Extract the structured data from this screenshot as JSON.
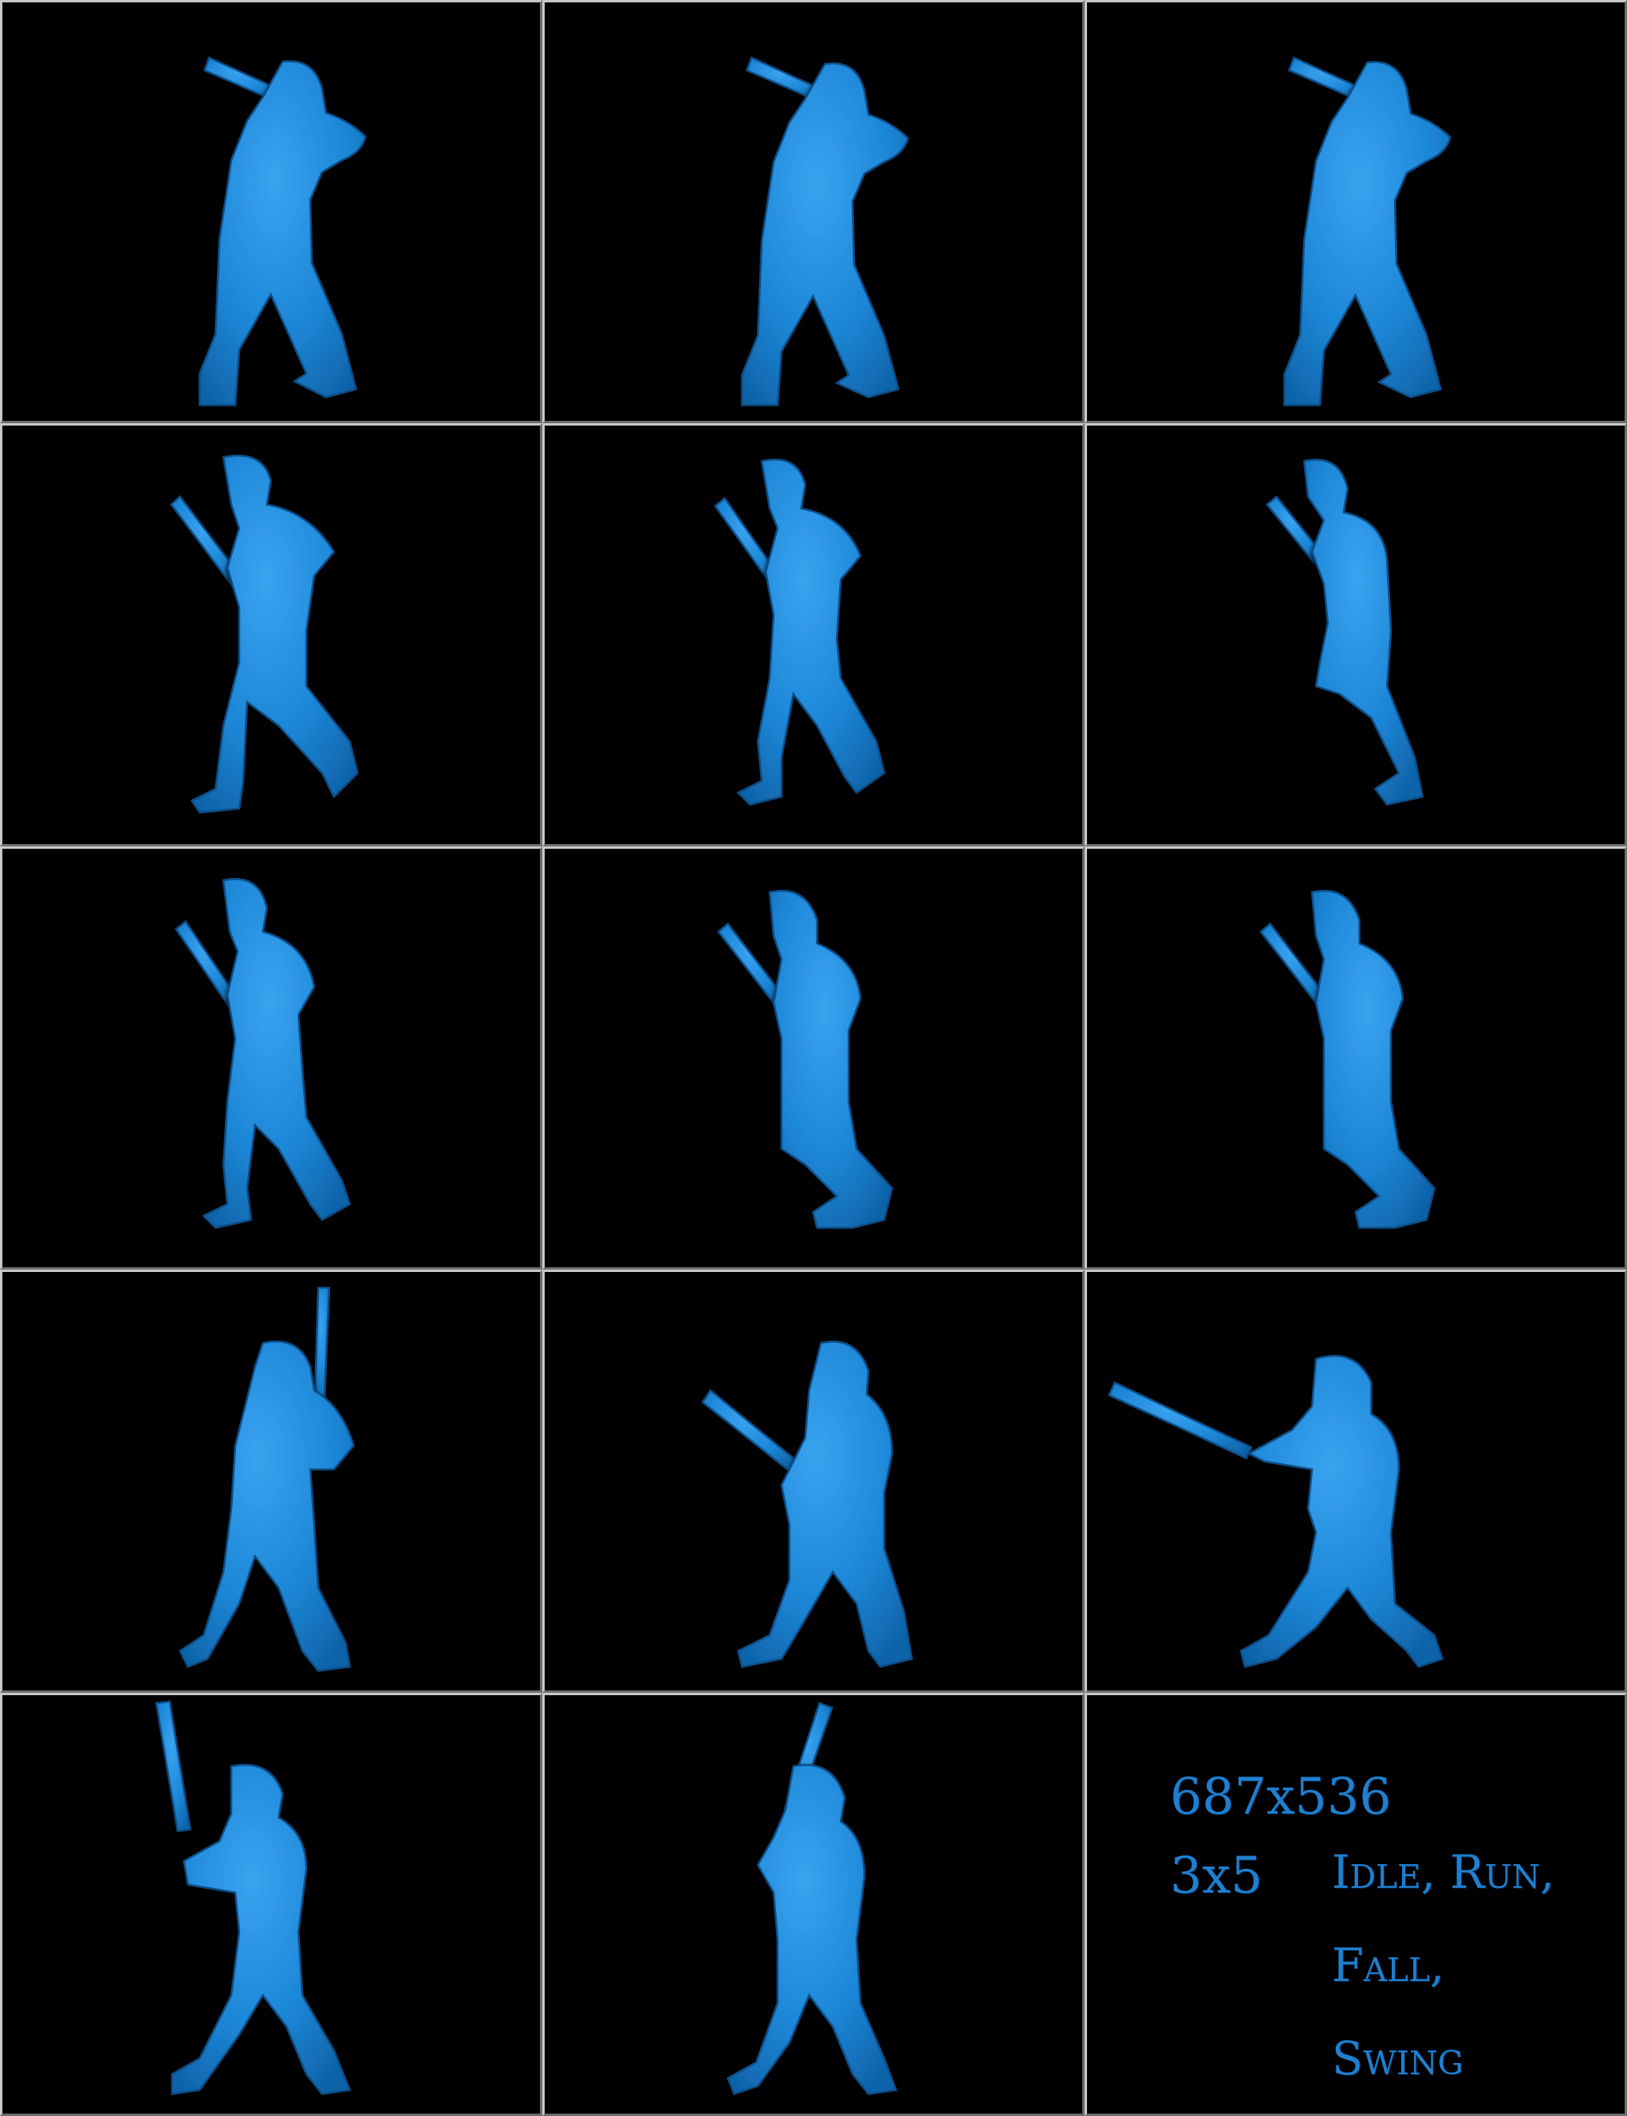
{
  "sheet": {
    "columns": 3,
    "rows": 5,
    "frame_color": "#1e88d8",
    "background_color": "#000000",
    "frames": [
      {
        "index": 1,
        "pose": "idle"
      },
      {
        "index": 2,
        "pose": "idle"
      },
      {
        "index": 3,
        "pose": "idle"
      },
      {
        "index": 4,
        "pose": "run"
      },
      {
        "index": 5,
        "pose": "run"
      },
      {
        "index": 6,
        "pose": "run"
      },
      {
        "index": 7,
        "pose": "run"
      },
      {
        "index": 8,
        "pose": "fall"
      },
      {
        "index": 9,
        "pose": "fall"
      },
      {
        "index": 10,
        "pose": "swing"
      },
      {
        "index": 11,
        "pose": "swing"
      },
      {
        "index": 12,
        "pose": "swing"
      },
      {
        "index": 13,
        "pose": "swing"
      },
      {
        "index": 14,
        "pose": "swing"
      }
    ]
  },
  "info": {
    "dimensions": "687x536",
    "grid": "3x5",
    "animations_line1": "Idle, Run,",
    "animations_line2": "Fall,",
    "animations_line3": "Swing"
  }
}
